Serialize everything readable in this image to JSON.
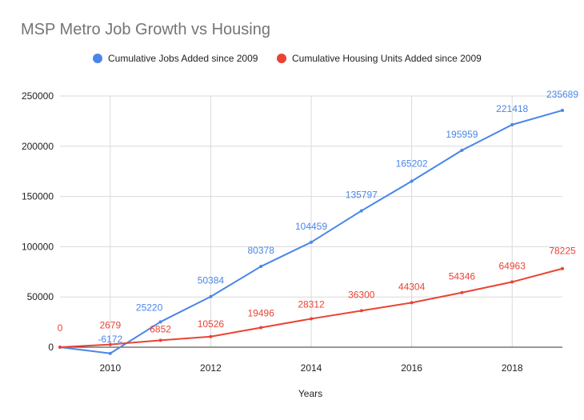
{
  "chart_data": {
    "type": "line",
    "title": "MSP Metro Job Growth vs Housing",
    "xlabel": "Years",
    "ylabel": "",
    "x": [
      2009,
      2010,
      2011,
      2012,
      2013,
      2014,
      2015,
      2016,
      2017,
      2018,
      2019
    ],
    "xlim": [
      2009,
      2019
    ],
    "ylim": [
      0,
      250000
    ],
    "x_ticks": [
      2010,
      2012,
      2014,
      2016,
      2018
    ],
    "y_ticks": [
      0,
      50000,
      100000,
      150000,
      200000,
      250000
    ],
    "grid": true,
    "legend_position": "top",
    "series": [
      {
        "name": "Cumulative Jobs Added since 2009",
        "color": "#4a86e8",
        "values": [
          0,
          -6172,
          25220,
          50384,
          80378,
          104459,
          135797,
          165202,
          195959,
          221418,
          235689
        ],
        "labels": [
          "",
          "-6172",
          "25220",
          "50384",
          "80378",
          "104459",
          "135797",
          "165202",
          "195959",
          "221418",
          "235689"
        ]
      },
      {
        "name": "Cumulative Housing Units Added since 2009",
        "color": "#ea4335",
        "values": [
          0,
          2679,
          6852,
          10526,
          19496,
          28312,
          36300,
          44304,
          54346,
          64963,
          78225
        ],
        "labels": [
          "0",
          "2679",
          "6852",
          "10526",
          "19496",
          "28312",
          "36300",
          "44304",
          "54346",
          "64963",
          "78225"
        ]
      }
    ]
  }
}
